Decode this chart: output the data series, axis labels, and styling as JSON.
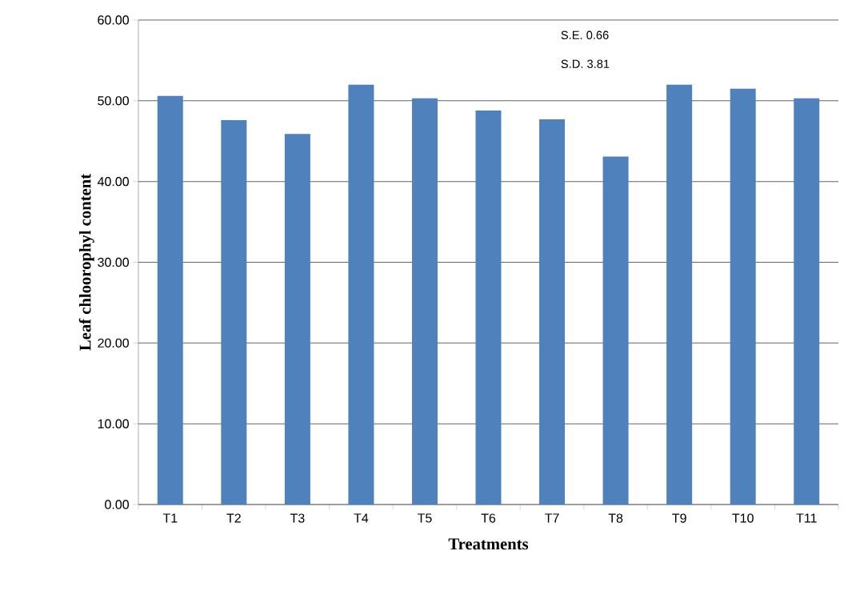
{
  "chart_data": {
    "type": "bar",
    "xlabel": "Treatments",
    "ylabel": "Leaf chloorophyl content",
    "categories": [
      "T1",
      "T2",
      "T3",
      "T4",
      "T5",
      "T6",
      "T7",
      "T8",
      "T9",
      "T10",
      "T11"
    ],
    "values": [
      50.6,
      47.6,
      45.9,
      52.0,
      50.3,
      48.8,
      47.7,
      43.1,
      52.0,
      51.5,
      50.3
    ],
    "color": "#4f81bd",
    "ylim": [
      0,
      60
    ],
    "yticks": [
      {
        "value": 0,
        "label": "0.00"
      },
      {
        "value": 10,
        "label": "10.00"
      },
      {
        "value": 20,
        "label": "20.00"
      },
      {
        "value": 30,
        "label": "30.00"
      },
      {
        "value": 40,
        "label": "40.00"
      },
      {
        "value": 50,
        "label": "50.00"
      },
      {
        "value": 60,
        "label": "60.00"
      }
    ],
    "grid": "y",
    "annotations": [
      "S.E. 0.66",
      "S.D. 3.81"
    ]
  }
}
